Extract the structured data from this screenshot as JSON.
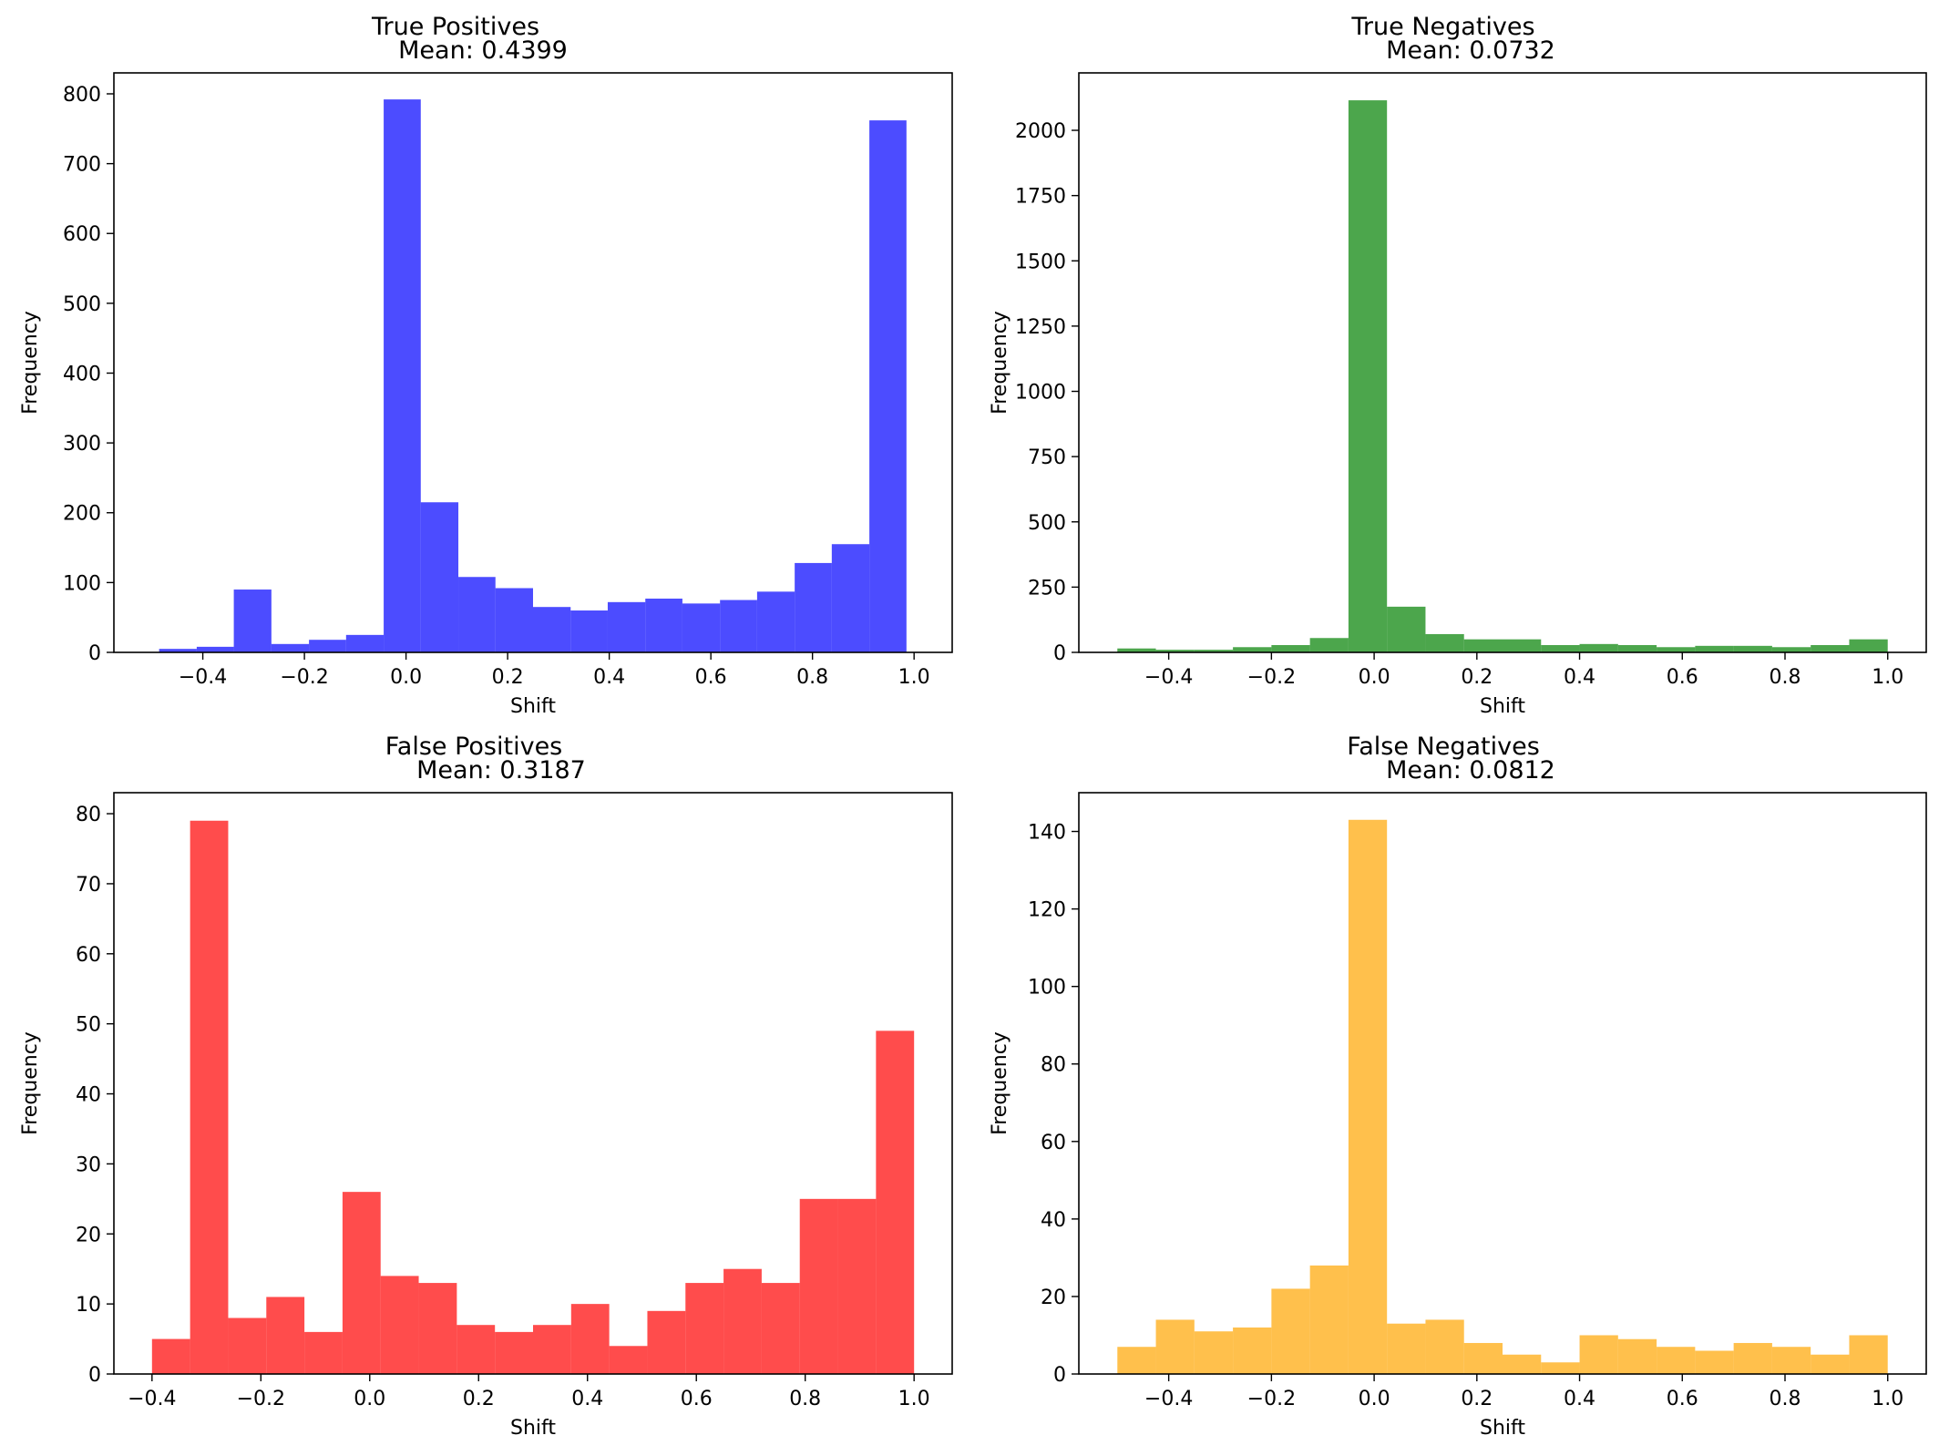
{
  "chart_data": [
    {
      "type": "bar",
      "title": "True Positives",
      "subtitle": "Mean: 0.4399",
      "xlabel": "Shift",
      "ylabel": "Frequency",
      "color": "#0000ff",
      "xlim": [
        -0.575,
        1.075
      ],
      "ylim": [
        0,
        830
      ],
      "xticks": [
        "−0.4",
        "−0.2",
        "0.0",
        "0.2",
        "0.4",
        "0.6",
        "0.8",
        "1.0"
      ],
      "xtick_values": [
        -0.4,
        -0.2,
        0.0,
        0.2,
        0.4,
        0.6,
        0.8,
        1.0
      ],
      "yticks": [
        "0",
        "100",
        "200",
        "300",
        "400",
        "500",
        "600",
        "700",
        "800"
      ],
      "ytick_values": [
        0,
        100,
        200,
        300,
        400,
        500,
        600,
        700,
        800
      ],
      "bin_edges": [
        -0.486,
        -0.412,
        -0.339,
        -0.265,
        -0.191,
        -0.118,
        -0.044,
        0.029,
        0.103,
        0.176,
        0.25,
        0.324,
        0.397,
        0.471,
        0.544,
        0.618,
        0.691,
        0.765,
        0.838,
        0.912,
        0.985
      ],
      "values": [
        5,
        8,
        90,
        12,
        18,
        25,
        792,
        215,
        108,
        92,
        65,
        60,
        72,
        77,
        70,
        75,
        87,
        128,
        155,
        762
      ]
    },
    {
      "type": "bar",
      "title": "True Negatives",
      "subtitle": "Mean: 0.0732",
      "xlabel": "Shift",
      "ylabel": "Frequency",
      "color": "#008000",
      "xlim": [
        -0.575,
        1.075
      ],
      "ylim": [
        0,
        2220
      ],
      "xticks": [
        "−0.4",
        "−0.2",
        "0.0",
        "0.2",
        "0.4",
        "0.6",
        "0.8",
        "1.0"
      ],
      "xtick_values": [
        -0.4,
        -0.2,
        0.0,
        0.2,
        0.4,
        0.6,
        0.8,
        1.0
      ],
      "yticks": [
        "0",
        "250",
        "500",
        "750",
        "1000",
        "1250",
        "1500",
        "1750",
        "2000"
      ],
      "ytick_values": [
        0,
        250,
        500,
        750,
        1000,
        1250,
        1500,
        1750,
        2000
      ],
      "bin_edges": [
        -0.5,
        -0.425,
        -0.35,
        -0.275,
        -0.2,
        -0.125,
        -0.05,
        0.025,
        0.1,
        0.175,
        0.25,
        0.325,
        0.4,
        0.475,
        0.55,
        0.625,
        0.7,
        0.775,
        0.85,
        0.925,
        1.0
      ],
      "values": [
        15,
        10,
        10,
        20,
        28,
        55,
        2115,
        175,
        70,
        50,
        50,
        28,
        32,
        28,
        20,
        25,
        25,
        20,
        28,
        50
      ]
    },
    {
      "type": "bar",
      "title": "False Positives",
      "subtitle": "Mean: 0.3187",
      "xlabel": "Shift",
      "ylabel": "Frequency",
      "color": "#ff0000",
      "xlim": [
        -0.47,
        1.07
      ],
      "ylim": [
        0,
        83
      ],
      "xticks": [
        "−0.4",
        "−0.2",
        "0.0",
        "0.2",
        "0.4",
        "0.6",
        "0.8",
        "1.0"
      ],
      "xtick_values": [
        -0.4,
        -0.2,
        0.0,
        0.2,
        0.4,
        0.6,
        0.8,
        1.0
      ],
      "yticks": [
        "0",
        "10",
        "20",
        "30",
        "40",
        "50",
        "60",
        "70",
        "80"
      ],
      "ytick_values": [
        0,
        10,
        20,
        30,
        40,
        50,
        60,
        70,
        80
      ],
      "bin_edges": [
        -0.4,
        -0.33,
        -0.26,
        -0.19,
        -0.12,
        -0.05,
        0.02,
        0.09,
        0.16,
        0.23,
        0.3,
        0.37,
        0.44,
        0.51,
        0.58,
        0.65,
        0.72,
        0.79,
        0.86,
        0.93,
        1.0
      ],
      "values": [
        5,
        79,
        8,
        11,
        6,
        26,
        14,
        13,
        7,
        6,
        7,
        10,
        4,
        9,
        13,
        15,
        13,
        25,
        25,
        49
      ]
    },
    {
      "type": "bar",
      "title": "False Negatives",
      "subtitle": "Mean: 0.0812",
      "xlabel": "Shift",
      "ylabel": "Frequency",
      "color": "#ffa500",
      "xlim": [
        -0.575,
        1.075
      ],
      "ylim": [
        0,
        150
      ],
      "xticks": [
        "−0.4",
        "−0.2",
        "0.0",
        "0.2",
        "0.4",
        "0.6",
        "0.8",
        "1.0"
      ],
      "xtick_values": [
        -0.4,
        -0.2,
        0.0,
        0.2,
        0.4,
        0.6,
        0.8,
        1.0
      ],
      "yticks": [
        "0",
        "20",
        "40",
        "60",
        "80",
        "100",
        "120",
        "140"
      ],
      "ytick_values": [
        0,
        20,
        40,
        60,
        80,
        100,
        120,
        140
      ],
      "bin_edges": [
        -0.5,
        -0.425,
        -0.35,
        -0.275,
        -0.2,
        -0.125,
        -0.05,
        0.025,
        0.1,
        0.175,
        0.25,
        0.325,
        0.4,
        0.475,
        0.55,
        0.625,
        0.7,
        0.775,
        0.85,
        0.925,
        1.0
      ],
      "values": [
        7,
        14,
        11,
        12,
        22,
        28,
        143,
        13,
        14,
        8,
        5,
        3,
        10,
        9,
        7,
        6,
        8,
        7,
        5,
        10
      ]
    }
  ]
}
